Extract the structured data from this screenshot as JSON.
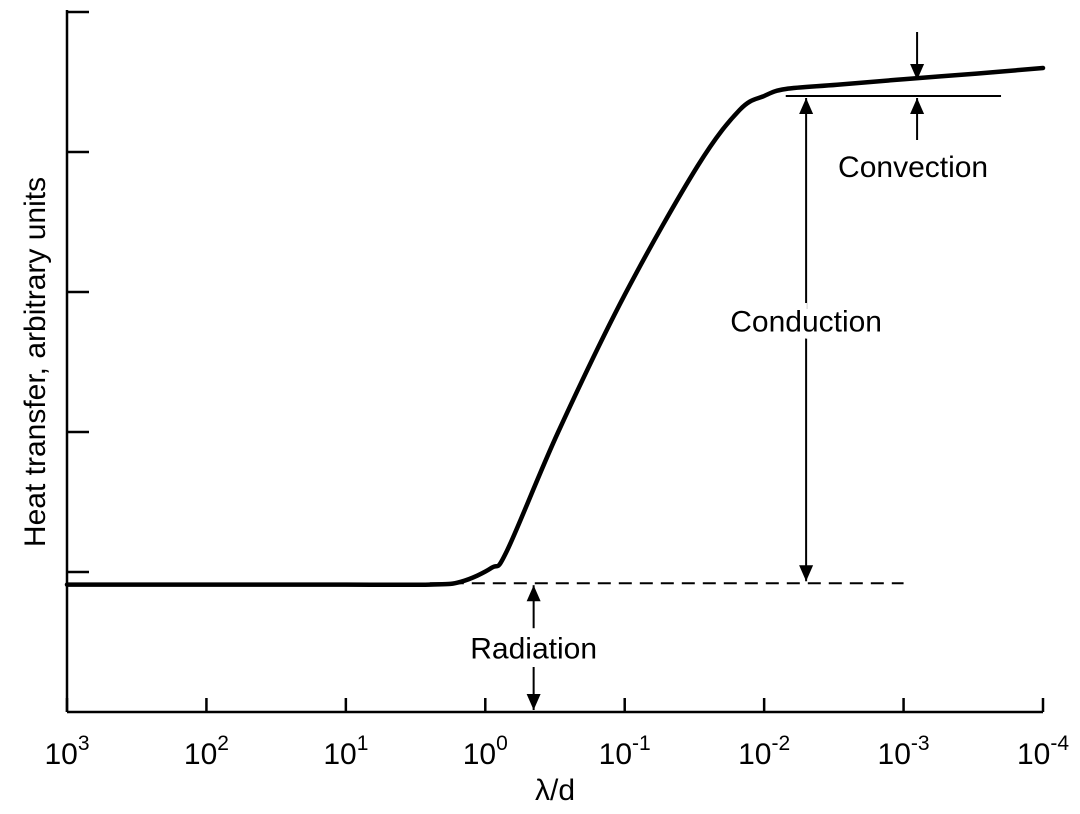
{
  "chart_data": {
    "type": "line",
    "title": "",
    "xlabel": "λ/d",
    "ylabel": "Heat transfer, arbitrary units",
    "x_scale": "log",
    "x_direction": "decreasing",
    "x_ticks": [
      {
        "value": 1000,
        "base": "10",
        "exp": "3"
      },
      {
        "value": 100,
        "base": "10",
        "exp": "2"
      },
      {
        "value": 10,
        "base": "10",
        "exp": "1"
      },
      {
        "value": 1,
        "base": "10",
        "exp": "0"
      },
      {
        "value": 0.1,
        "base": "10",
        "exp": "-1"
      },
      {
        "value": 0.01,
        "base": "10",
        "exp": "-2"
      },
      {
        "value": 0.001,
        "base": "10",
        "exp": "-3"
      },
      {
        "value": 0.0001,
        "base": "10",
        "exp": "-4"
      }
    ],
    "xlim": [
      1000,
      0.0001
    ],
    "ylim": [
      0,
      5
    ],
    "y_ticks": [
      1,
      2,
      3,
      4,
      5
    ],
    "y_tick_labels": false,
    "grid": false,
    "series": [
      {
        "style": "solid",
        "x": [
          1000,
          100,
          10,
          2.5,
          1.5,
          0.9,
          0.7,
          0.3,
          0.1,
          0.03,
          0.015,
          0.01,
          0.007,
          0.003,
          0.001,
          0.0003,
          0.0001
        ],
        "y": [
          0.91,
          0.91,
          0.91,
          0.91,
          0.93,
          1.03,
          1.15,
          2.0,
          2.98,
          3.9,
          4.3,
          4.4,
          4.45,
          4.48,
          4.52,
          4.56,
          4.6
        ]
      }
    ],
    "reference_lines": [
      {
        "style": "dashed",
        "y": 0.92,
        "x_from": 2.5,
        "x_to": 0.001
      },
      {
        "style": "solid",
        "y": 4.4,
        "x_from": 0.007,
        "x_to": 0.0002
      }
    ],
    "annotations": [
      {
        "text": "Convection",
        "x": 0.0008,
        "y_from": 4.4,
        "y_to": 4.5
      },
      {
        "text": "Conduction",
        "x": 0.005,
        "y_from": 0.92,
        "y_to": 4.4
      },
      {
        "text": "Radiation",
        "x": 0.45,
        "y_from": 0,
        "y_to": 0.92
      }
    ]
  }
}
